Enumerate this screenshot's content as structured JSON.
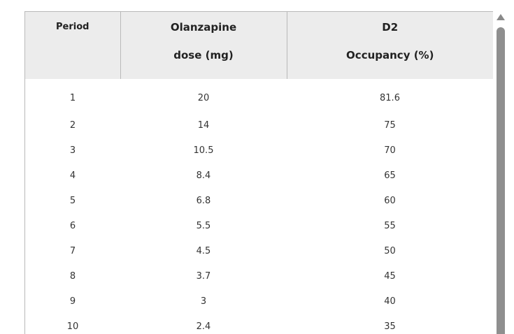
{
  "table": {
    "headers": [
      {
        "line1": "Period",
        "line2": ""
      },
      {
        "line1": "Olanzapine",
        "line2": "dose (mg)"
      },
      {
        "line1": "D2",
        "line2": "Occupancy (%)"
      }
    ],
    "rows": [
      [
        "1",
        "20",
        "81.6"
      ],
      [
        "2",
        "14",
        "75"
      ],
      [
        "3",
        "10.5",
        "70"
      ],
      [
        "4",
        "8.4",
        "65"
      ],
      [
        "5",
        "6.8",
        "60"
      ],
      [
        "6",
        "5.5",
        "55"
      ],
      [
        "7",
        "4.5",
        "50"
      ],
      [
        "8",
        "3.7",
        "45"
      ],
      [
        "9",
        "3",
        "40"
      ],
      [
        "10",
        "2.4",
        "35"
      ]
    ]
  },
  "scrollbar": {
    "up_icon": "triangle-up-icon"
  }
}
